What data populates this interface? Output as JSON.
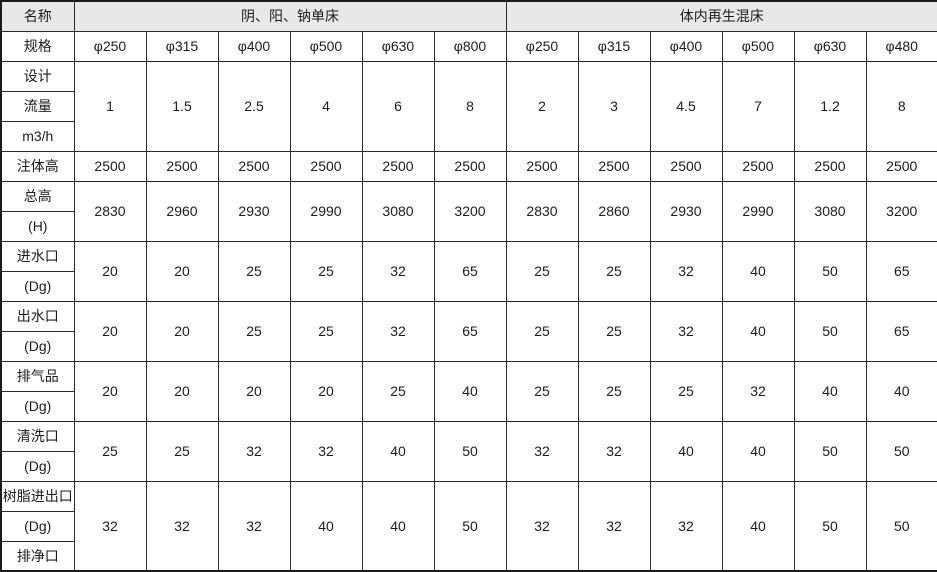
{
  "theme": {
    "header_bg": "#e8e8e8",
    "border_color": "#2a2a2a",
    "text_color": "#1c1c1c"
  },
  "header": {
    "name_label": "名称",
    "group_left": "阴、阳、钠单床",
    "group_right": "体内再生混床"
  },
  "specs": {
    "label": "规格",
    "values": [
      "φ250",
      "φ315",
      "φ400",
      "φ500",
      "φ630",
      "φ800",
      "φ250",
      "φ315",
      "φ400",
      "φ500",
      "φ630",
      "φ480"
    ]
  },
  "data_rows": [
    {
      "id": "design-flow",
      "labels": [
        "设计",
        "流量",
        "m3/h"
      ],
      "values": [
        "1",
        "1.5",
        "2.5",
        "4",
        "6",
        "8",
        "2",
        "3",
        "4.5",
        "7",
        "1.2",
        "8"
      ]
    },
    {
      "id": "body-height",
      "labels": [
        "注体高"
      ],
      "values": [
        "2500",
        "2500",
        "2500",
        "2500",
        "2500",
        "2500",
        "2500",
        "2500",
        "2500",
        "2500",
        "2500",
        "2500"
      ]
    },
    {
      "id": "total-height",
      "labels": [
        "总高",
        "(H)"
      ],
      "values": [
        "2830",
        "2960",
        "2930",
        "2990",
        "3080",
        "3200",
        "2830",
        "2860",
        "2930",
        "2990",
        "3080",
        "3200"
      ]
    },
    {
      "id": "water-inlet",
      "labels": [
        "进水口",
        "(Dg)"
      ],
      "values": [
        "20",
        "20",
        "25",
        "25",
        "32",
        "65",
        "25",
        "25",
        "32",
        "40",
        "50",
        "65"
      ]
    },
    {
      "id": "water-outlet",
      "labels": [
        "出水口",
        "(Dg)"
      ],
      "values": [
        "20",
        "20",
        "25",
        "25",
        "32",
        "65",
        "25",
        "25",
        "32",
        "40",
        "50",
        "65"
      ]
    },
    {
      "id": "vent-port",
      "labels": [
        "排气品",
        "(Dg)"
      ],
      "values": [
        "20",
        "20",
        "20",
        "20",
        "25",
        "40",
        "25",
        "25",
        "25",
        "32",
        "40",
        "40"
      ]
    },
    {
      "id": "wash-port",
      "labels": [
        "清洗口",
        "(Dg)"
      ],
      "values": [
        "25",
        "25",
        "32",
        "32",
        "40",
        "50",
        "32",
        "32",
        "40",
        "40",
        "50",
        "50"
      ]
    },
    {
      "id": "resin-port",
      "labels": [
        "树脂进出口",
        "(Dg)",
        "排净口"
      ],
      "values": [
        "32",
        "32",
        "32",
        "40",
        "40",
        "50",
        "32",
        "32",
        "32",
        "40",
        "50",
        "50"
      ]
    }
  ]
}
